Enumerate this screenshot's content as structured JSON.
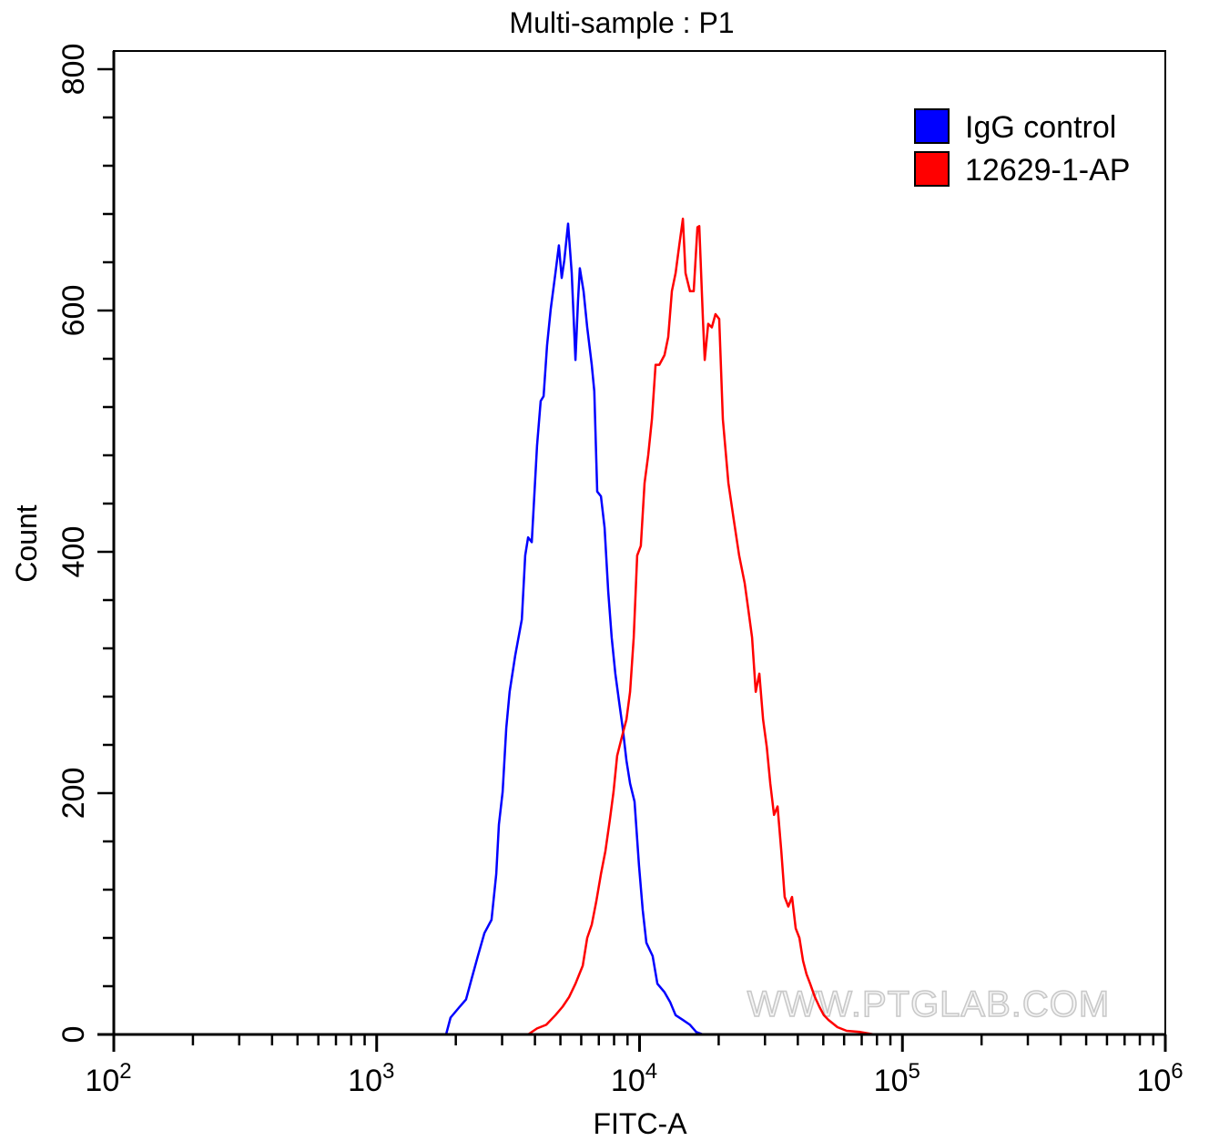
{
  "chart_data": {
    "type": "line",
    "title": "Multi-sample : P1",
    "xlabel": "FITC-A",
    "ylabel": "Count",
    "xscale": "log",
    "xlim": [
      100,
      1000000
    ],
    "ylim": [
      0,
      800
    ],
    "x_ticks": [
      {
        "base": "10",
        "exp": "2",
        "value": 100
      },
      {
        "base": "10",
        "exp": "3",
        "value": 1000
      },
      {
        "base": "10",
        "exp": "4",
        "value": 10000
      },
      {
        "base": "10",
        "exp": "5",
        "value": 100000
      },
      {
        "base": "10",
        "exp": "6",
        "value": 1000000
      }
    ],
    "y_ticks": [
      "0",
      "200",
      "400",
      "600",
      "800"
    ],
    "grid": false,
    "legend_position": "top-right",
    "watermark": "WWW.PTGLAB.COM",
    "series": [
      {
        "name": "IgG control",
        "color": "#0000ff",
        "x": [
          1837,
          1910,
          2070,
          2188,
          2296,
          2427,
          2570,
          2735,
          2851,
          2917,
          3013,
          3112,
          3206,
          3365,
          3565,
          3673,
          3767,
          3890,
          4074,
          4207,
          4315,
          4446,
          4592,
          4786,
          4932,
          5058,
          5176,
          5346,
          5521,
          5702,
          5834,
          5929,
          6124,
          6324,
          6577,
          6730,
          6902,
          7129,
          7362,
          7603,
          7834,
          8091,
          8356,
          8630,
          8913,
          9204,
          9572,
          9954,
          10280,
          10617,
          11220,
          11695,
          12445,
          13060,
          13710,
          14620,
          15560,
          16440,
          17420
        ],
        "y": [
          0,
          14,
          23,
          29,
          46,
          65,
          84,
          95,
          133,
          174,
          201,
          254,
          284,
          314,
          344,
          397,
          412,
          408,
          488,
          525,
          529,
          571,
          601,
          631,
          654,
          627,
          642,
          672,
          631,
          559,
          608,
          635,
          616,
          586,
          555,
          533,
          450,
          446,
          420,
          367,
          329,
          299,
          276,
          254,
          227,
          208,
          193,
          140,
          103,
          76,
          65,
          42,
          35,
          27,
          16,
          12,
          8,
          2,
          0
        ]
      },
      {
        "name": "12629-1-AP",
        "color": "#ff0000",
        "x": [
          3767,
          4074,
          4416,
          4786,
          5096,
          5396,
          5702,
          6081,
          6324,
          6577,
          6842,
          7129,
          7414,
          7710,
          7962,
          8222,
          8551,
          8913,
          9204,
          9506,
          9798,
          10115,
          10447,
          10790,
          11143,
          11509,
          11885,
          12445,
          12853,
          13274,
          13710,
          14160,
          14620,
          14962,
          15560,
          16070,
          16600,
          16870,
          17420,
          17700,
          18240,
          18840,
          19450,
          20090,
          20750,
          21780,
          22800,
          23930,
          25120,
          25940,
          26790,
          27670,
          28570,
          29510,
          30480,
          31420,
          32460,
          33500,
          34600,
          35650,
          36810,
          38020,
          39260,
          40550,
          41880,
          43150,
          44570,
          46450,
          48310,
          50230,
          52360,
          56620,
          61380,
          69180,
          77980
        ],
        "y": [
          0,
          5,
          8,
          16,
          23,
          31,
          42,
          57,
          80,
          91,
          110,
          133,
          152,
          178,
          201,
          231,
          246,
          261,
          284,
          329,
          397,
          405,
          457,
          480,
          510,
          555,
          555,
          563,
          578,
          616,
          631,
          654,
          676,
          631,
          616,
          616,
          669,
          670,
          593,
          559,
          589,
          586,
          597,
          593,
          510,
          457,
          427,
          397,
          374,
          352,
          329,
          284,
          299,
          261,
          238,
          208,
          182,
          189,
          152,
          114,
          106,
          114,
          88,
          80,
          61,
          50,
          42,
          31,
          23,
          16,
          12,
          6,
          3,
          2,
          0
        ]
      }
    ]
  }
}
